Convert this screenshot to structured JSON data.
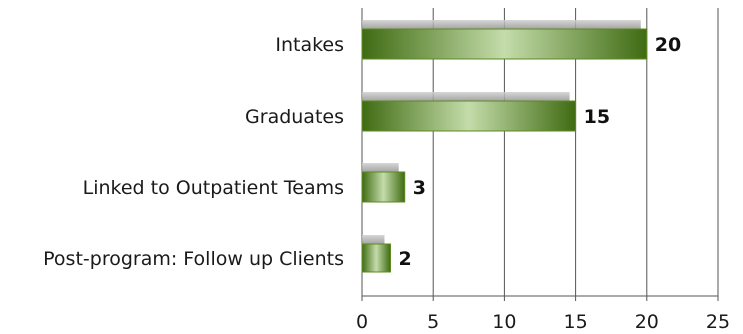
{
  "chart_data": {
    "type": "bar",
    "orientation": "horizontal",
    "categories": [
      "Intakes",
      "Graduates",
      "Linked to Outpatient Teams",
      "Post-program: Follow up Clients"
    ],
    "values": [
      20,
      15,
      3,
      2
    ],
    "data_labels": [
      "20",
      "15",
      "3",
      "2"
    ],
    "title": "",
    "xlabel": "",
    "ylabel": "",
    "xlim": [
      0,
      25
    ],
    "x_ticks": [
      0,
      5,
      10,
      15,
      20,
      25
    ],
    "grid": true,
    "legend": "none",
    "colors": {
      "bar_dark": "#3f6b12",
      "bar_light": "#c4dcaa",
      "bar_mid": "#6f9a2e",
      "grid": "#555555",
      "shadow": "#9a9a9a"
    }
  }
}
